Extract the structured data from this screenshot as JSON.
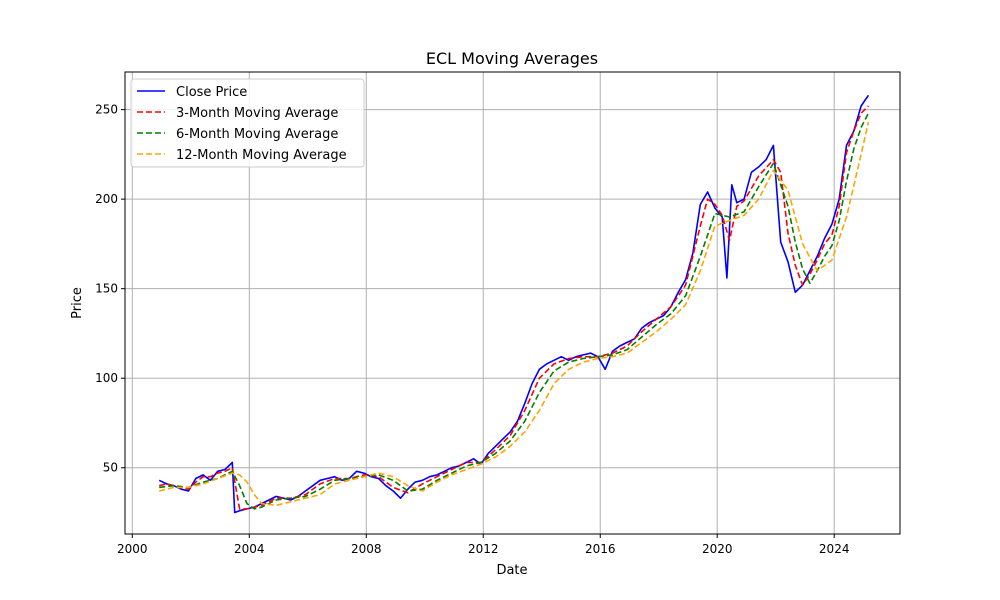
{
  "chart_data": {
    "type": "line",
    "title": "ECL Moving Averages",
    "xlabel": "Date",
    "ylabel": "Price",
    "xlim": [
      1999.75,
      2026.25
    ],
    "ylim": [
      13,
      271
    ],
    "x_ticks": [
      2000,
      2004,
      2008,
      2012,
      2016,
      2020,
      2024
    ],
    "x_tick_labels": [
      "2000",
      "2004",
      "2008",
      "2012",
      "2016",
      "2020",
      "2024"
    ],
    "y_ticks": [
      50,
      100,
      150,
      200,
      250
    ],
    "y_tick_labels": [
      "50",
      "100",
      "150",
      "200",
      "250"
    ],
    "grid": true,
    "legend_position": "upper-left",
    "series": [
      {
        "name": "Close Price",
        "color": "#0000ff",
        "style": "solid",
        "x": [
          2000.92,
          2001.17,
          2001.42,
          2001.67,
          2001.92,
          2002.17,
          2002.42,
          2002.67,
          2002.92,
          2003.17,
          2003.42,
          2003.5,
          2003.67,
          2003.92,
          2004.17,
          2004.42,
          2004.67,
          2004.92,
          2005.17,
          2005.42,
          2005.67,
          2005.92,
          2006.17,
          2006.42,
          2006.67,
          2006.92,
          2007.17,
          2007.42,
          2007.67,
          2007.92,
          2008.17,
          2008.42,
          2008.67,
          2008.92,
          2009.17,
          2009.42,
          2009.67,
          2009.92,
          2010.17,
          2010.42,
          2010.67,
          2010.92,
          2011.17,
          2011.42,
          2011.67,
          2011.92,
          2012.17,
          2012.42,
          2012.67,
          2012.92,
          2013.17,
          2013.42,
          2013.67,
          2013.92,
          2014.17,
          2014.42,
          2014.67,
          2014.92,
          2015.17,
          2015.42,
          2015.67,
          2015.92,
          2016.17,
          2016.42,
          2016.67,
          2016.92,
          2017.17,
          2017.42,
          2017.67,
          2017.92,
          2018.17,
          2018.42,
          2018.67,
          2018.92,
          2019.17,
          2019.42,
          2019.67,
          2019.92,
          2020.17,
          2020.33,
          2020.5,
          2020.67,
          2020.92,
          2021.17,
          2021.42,
          2021.67,
          2021.92,
          2022.17,
          2022.42,
          2022.67,
          2022.92,
          2023.17,
          2023.42,
          2023.67,
          2023.92,
          2024.17,
          2024.42,
          2024.67,
          2024.92,
          2025.17
        ],
        "values": [
          43,
          41,
          40,
          38,
          37,
          44,
          46,
          43,
          48,
          49,
          53,
          25,
          26,
          27,
          28,
          30,
          32,
          34,
          33,
          32,
          34,
          37,
          40,
          43,
          44,
          45,
          43,
          44,
          48,
          47,
          45,
          44,
          40,
          37,
          33,
          38,
          42,
          43,
          45,
          46,
          48,
          50,
          51,
          53,
          55,
          52,
          58,
          62,
          66,
          70,
          76,
          86,
          97,
          105,
          108,
          110,
          112,
          110,
          112,
          113,
          114,
          112,
          105,
          115,
          118,
          120,
          122,
          128,
          131,
          133,
          135,
          140,
          148,
          155,
          170,
          197,
          204,
          195,
          190,
          156,
          208,
          198,
          200,
          215,
          218,
          222,
          230,
          176,
          165,
          148,
          152,
          160,
          168,
          178,
          186,
          200,
          230,
          238,
          252,
          258
        ]
      },
      {
        "name": "3-Month Moving Average",
        "color": "#ff0000",
        "style": "dashed",
        "x": [
          2000.92,
          2001.17,
          2001.42,
          2001.67,
          2001.92,
          2002.17,
          2002.42,
          2002.67,
          2002.92,
          2003.17,
          2003.42,
          2003.67,
          2003.92,
          2004.17,
          2004.42,
          2004.67,
          2004.92,
          2005.42,
          2005.92,
          2006.42,
          2006.92,
          2007.42,
          2007.92,
          2008.42,
          2008.92,
          2009.42,
          2009.92,
          2010.42,
          2010.92,
          2011.42,
          2011.92,
          2012.42,
          2012.92,
          2013.42,
          2013.92,
          2014.42,
          2014.92,
          2015.42,
          2015.92,
          2016.42,
          2016.92,
          2017.42,
          2017.92,
          2018.42,
          2018.92,
          2019.42,
          2019.67,
          2019.92,
          2020.17,
          2020.42,
          2020.67,
          2020.92,
          2021.42,
          2021.92,
          2022.17,
          2022.42,
          2022.67,
          2022.92,
          2023.17,
          2023.42,
          2023.67,
          2023.92,
          2024.17,
          2024.42,
          2024.67,
          2024.92,
          2025.17
        ],
        "values": [
          40,
          41,
          40,
          39,
          38,
          42,
          45,
          45,
          47,
          48,
          50,
          27,
          27,
          28,
          29,
          31,
          33,
          33,
          35,
          41,
          44,
          44,
          46,
          45,
          39,
          36,
          41,
          45,
          49,
          53,
          53,
          60,
          68,
          82,
          100,
          108,
          111,
          112,
          112,
          114,
          118,
          126,
          133,
          140,
          152,
          185,
          200,
          197,
          191,
          177,
          196,
          199,
          213,
          222,
          215,
          181,
          163,
          152,
          158,
          166,
          175,
          180,
          196,
          226,
          238,
          248,
          252
        ]
      },
      {
        "name": "6-Month Moving Average",
        "color": "#008000",
        "style": "dashed",
        "x": [
          2000.92,
          2001.42,
          2001.92,
          2002.42,
          2002.92,
          2003.42,
          2003.67,
          2003.92,
          2004.17,
          2004.42,
          2004.92,
          2005.42,
          2005.92,
          2006.42,
          2006.92,
          2007.42,
          2007.92,
          2008.42,
          2008.92,
          2009.42,
          2009.92,
          2010.42,
          2010.92,
          2011.42,
          2011.92,
          2012.42,
          2012.92,
          2013.42,
          2013.92,
          2014.42,
          2014.92,
          2015.42,
          2015.92,
          2016.42,
          2016.92,
          2017.42,
          2017.92,
          2018.42,
          2018.92,
          2019.42,
          2019.92,
          2020.42,
          2020.92,
          2021.42,
          2021.92,
          2022.42,
          2022.67,
          2022.92,
          2023.17,
          2023.42,
          2023.67,
          2023.92,
          2024.17,
          2024.42,
          2024.67,
          2024.92,
          2025.17
        ],
        "values": [
          39,
          40,
          39,
          42,
          44,
          48,
          40,
          30,
          27,
          28,
          32,
          33,
          34,
          38,
          43,
          44,
          45,
          46,
          43,
          37,
          38,
          43,
          47,
          51,
          53,
          58,
          65,
          76,
          92,
          104,
          109,
          111,
          112,
          113,
          116,
          123,
          130,
          136,
          146,
          168,
          192,
          190,
          193,
          207,
          220,
          196,
          176,
          161,
          153,
          160,
          168,
          174,
          188,
          210,
          228,
          240,
          248
        ]
      },
      {
        "name": "12-Month Moving Average",
        "color": "#ffa500",
        "style": "dashed",
        "x": [
          2000.92,
          2001.42,
          2001.92,
          2002.42,
          2002.92,
          2003.42,
          2003.67,
          2003.92,
          2004.17,
          2004.42,
          2004.92,
          2005.42,
          2005.92,
          2006.42,
          2006.92,
          2007.42,
          2007.92,
          2008.42,
          2008.92,
          2009.42,
          2009.92,
          2010.42,
          2010.92,
          2011.42,
          2011.92,
          2012.42,
          2012.92,
          2013.42,
          2013.92,
          2014.42,
          2014.92,
          2015.42,
          2015.92,
          2016.42,
          2016.92,
          2017.42,
          2017.92,
          2018.42,
          2018.92,
          2019.42,
          2019.92,
          2020.42,
          2020.92,
          2021.42,
          2021.92,
          2022.42,
          2022.92,
          2023.42,
          2023.92,
          2024.42,
          2024.92,
          2025.17
        ],
        "values": [
          37,
          39,
          39,
          41,
          44,
          47,
          46,
          42,
          35,
          30,
          29,
          31,
          33,
          35,
          41,
          43,
          45,
          47,
          45,
          40,
          37,
          42,
          46,
          49,
          52,
          56,
          62,
          70,
          82,
          97,
          105,
          109,
          111,
          112,
          114,
          120,
          126,
          133,
          141,
          160,
          185,
          188,
          191,
          200,
          216,
          205,
          175,
          160,
          166,
          190,
          225,
          243
        ]
      }
    ]
  }
}
